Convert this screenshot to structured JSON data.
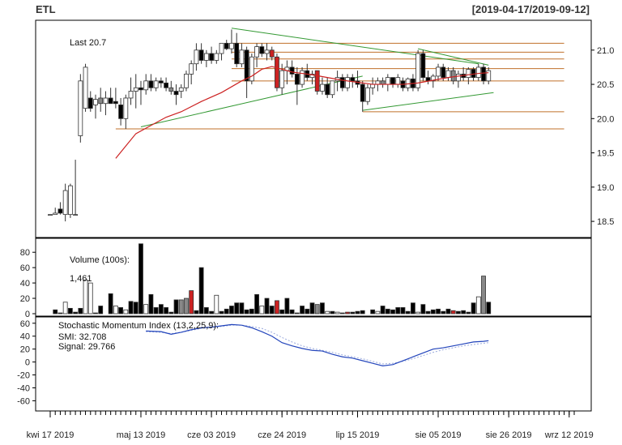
{
  "header": {
    "symbol": "ETL",
    "range": "[2019-04-17/2019-09-12]"
  },
  "chart_data": [
    {
      "type": "candlestick",
      "annotation": "Last 20.7",
      "ylim": [
        18.3,
        21.4
      ],
      "yticks": [
        18.5,
        19.0,
        19.5,
        20.0,
        20.5,
        21.0
      ],
      "x_range": [
        0,
        104
      ],
      "candles": [
        [
          0,
          18.6,
          18.6,
          18.6,
          18.6,
          0
        ],
        [
          1,
          18.6,
          18.7,
          18.6,
          18.62,
          0
        ],
        [
          2,
          18.68,
          18.78,
          18.6,
          18.62,
          0
        ],
        [
          3,
          18.6,
          19.05,
          18.5,
          18.95,
          0
        ],
        [
          4,
          18.6,
          19.05,
          18.55,
          19.02,
          0
        ],
        [
          5,
          18.6,
          19.4,
          18.6,
          18.6,
          0
        ],
        [
          6,
          19.75,
          20.65,
          19.65,
          20.55,
          0
        ],
        [
          7,
          20.15,
          20.8,
          20.1,
          20.75,
          0
        ],
        [
          8,
          20.3,
          20.4,
          20.1,
          20.15,
          0
        ],
        [
          9,
          20.2,
          20.35,
          20.0,
          20.28,
          0
        ],
        [
          10,
          20.3,
          20.45,
          20.1,
          20.22,
          0
        ],
        [
          11,
          20.22,
          20.4,
          20.05,
          20.3,
          0
        ],
        [
          12,
          20.3,
          20.45,
          20.25,
          20.22,
          0
        ],
        [
          13,
          20.25,
          20.45,
          20.15,
          20.22,
          0
        ],
        [
          14,
          20.2,
          20.3,
          19.9,
          20.0,
          0
        ],
        [
          15,
          20.0,
          20.35,
          19.85,
          20.3,
          0
        ],
        [
          16,
          20.3,
          20.6,
          20.2,
          20.4,
          0
        ],
        [
          17,
          20.4,
          20.65,
          20.15,
          20.45,
          0
        ],
        [
          18,
          20.45,
          20.55,
          20.2,
          20.42,
          0
        ],
        [
          19,
          20.42,
          20.65,
          20.35,
          20.55,
          0
        ],
        [
          20,
          20.55,
          20.65,
          20.4,
          20.45,
          0
        ],
        [
          21,
          20.45,
          20.6,
          20.4,
          20.55,
          0
        ],
        [
          22,
          20.55,
          20.6,
          20.45,
          20.52,
          0
        ],
        [
          23,
          20.52,
          20.6,
          20.4,
          20.45,
          0
        ],
        [
          24,
          20.45,
          20.55,
          20.35,
          20.4,
          0
        ],
        [
          25,
          20.4,
          20.5,
          20.2,
          20.35,
          0
        ],
        [
          26,
          20.4,
          20.5,
          20.3,
          20.45,
          0
        ],
        [
          27,
          20.45,
          20.7,
          20.4,
          20.65,
          0
        ],
        [
          28,
          20.65,
          20.85,
          20.5,
          20.8,
          0
        ],
        [
          29,
          20.8,
          21.1,
          20.7,
          21.0,
          0
        ],
        [
          30,
          21.0,
          21.1,
          20.8,
          20.85,
          0
        ],
        [
          31,
          20.85,
          21.0,
          20.75,
          20.95,
          0
        ],
        [
          32,
          20.95,
          21.05,
          20.8,
          20.85,
          0
        ],
        [
          33,
          20.85,
          21.0,
          20.8,
          20.95,
          0
        ],
        [
          34,
          20.95,
          21.1,
          20.85,
          21.1,
          0
        ],
        [
          35,
          21.1,
          21.15,
          21.0,
          21.02,
          0
        ],
        [
          36,
          21.02,
          21.3,
          20.95,
          21.1,
          0
        ],
        [
          37,
          21.1,
          21.25,
          20.75,
          20.8,
          0
        ],
        [
          38,
          20.8,
          21.1,
          20.75,
          21.0,
          0
        ],
        [
          39,
          21.0,
          21.05,
          20.3,
          20.55,
          0
        ],
        [
          40,
          20.55,
          20.95,
          20.5,
          20.9,
          0
        ],
        [
          41,
          20.9,
          21.1,
          20.75,
          21.05,
          0
        ],
        [
          42,
          21.05,
          21.1,
          20.9,
          20.95,
          0
        ],
        [
          43,
          20.95,
          21.1,
          20.85,
          21.0,
          0
        ],
        [
          44,
          21.0,
          21.05,
          20.85,
          20.9,
          1
        ],
        [
          45,
          20.9,
          20.95,
          20.4,
          20.45,
          1
        ],
        [
          46,
          20.45,
          20.8,
          20.35,
          20.7,
          0
        ],
        [
          47,
          20.7,
          20.85,
          20.5,
          20.75,
          0
        ],
        [
          48,
          20.75,
          20.85,
          20.6,
          20.65,
          0
        ],
        [
          49,
          20.65,
          20.75,
          20.2,
          20.5,
          0
        ],
        [
          50,
          20.5,
          20.75,
          20.45,
          20.7,
          0
        ],
        [
          51,
          20.7,
          20.8,
          20.55,
          20.6,
          0
        ],
        [
          52,
          20.6,
          20.7,
          20.5,
          20.65,
          0
        ],
        [
          53,
          20.7,
          20.7,
          20.35,
          20.4,
          1
        ],
        [
          54,
          20.4,
          20.6,
          20.35,
          20.5,
          0
        ],
        [
          55,
          20.5,
          20.6,
          20.3,
          20.35,
          0
        ],
        [
          56,
          20.35,
          20.55,
          20.3,
          20.55,
          0
        ],
        [
          57,
          20.55,
          20.7,
          20.4,
          20.6,
          0
        ],
        [
          58,
          20.6,
          20.65,
          20.4,
          20.45,
          0
        ],
        [
          59,
          20.45,
          20.65,
          20.4,
          20.6,
          0
        ],
        [
          60,
          20.6,
          20.65,
          20.45,
          20.55,
          0
        ],
        [
          61,
          20.55,
          20.7,
          20.45,
          20.5,
          0
        ],
        [
          62,
          20.5,
          20.55,
          20.1,
          20.25,
          0
        ],
        [
          63,
          20.25,
          20.5,
          20.2,
          20.45,
          0
        ],
        [
          64,
          20.45,
          20.6,
          20.35,
          20.5,
          0
        ],
        [
          65,
          20.5,
          20.6,
          20.4,
          20.55,
          0
        ],
        [
          66,
          20.55,
          20.6,
          20.45,
          20.5,
          0
        ],
        [
          67,
          20.5,
          20.65,
          20.4,
          20.6,
          0
        ],
        [
          68,
          20.6,
          20.6,
          20.45,
          20.5,
          0
        ],
        [
          69,
          20.5,
          20.65,
          20.45,
          20.6,
          0
        ],
        [
          70,
          20.55,
          20.6,
          20.4,
          20.45,
          0
        ],
        [
          71,
          20.45,
          20.6,
          20.4,
          20.58,
          0
        ],
        [
          72,
          20.58,
          20.65,
          20.4,
          20.45,
          0
        ],
        [
          73,
          20.45,
          21.0,
          20.4,
          20.95,
          0
        ],
        [
          74,
          20.95,
          21.0,
          20.55,
          20.6,
          0
        ],
        [
          75,
          20.6,
          20.7,
          20.5,
          20.55,
          0
        ],
        [
          76,
          20.55,
          20.65,
          20.45,
          20.62,
          0
        ],
        [
          77,
          20.62,
          20.8,
          20.55,
          20.75,
          0
        ],
        [
          78,
          20.75,
          20.8,
          20.55,
          20.6,
          0
        ],
        [
          79,
          20.6,
          20.75,
          20.55,
          20.7,
          0
        ],
        [
          80,
          20.7,
          20.75,
          20.5,
          20.55,
          0
        ],
        [
          81,
          20.55,
          20.7,
          20.45,
          20.65,
          0
        ],
        [
          82,
          20.65,
          20.75,
          20.55,
          20.6,
          0
        ],
        [
          83,
          20.6,
          20.75,
          20.5,
          20.72,
          0
        ],
        [
          84,
          20.72,
          20.75,
          20.55,
          20.6,
          0
        ],
        [
          85,
          20.6,
          20.8,
          20.55,
          20.75,
          0
        ],
        [
          86,
          20.75,
          20.8,
          20.5,
          20.55,
          0
        ],
        [
          87,
          20.55,
          20.75,
          20.5,
          20.7,
          0
        ]
      ],
      "moving_average": [
        [
          13,
          19.42
        ],
        [
          15,
          19.6
        ],
        [
          17,
          19.78
        ],
        [
          20,
          19.9
        ],
        [
          23,
          20.02
        ],
        [
          26,
          20.1
        ],
        [
          30,
          20.25
        ],
        [
          34,
          20.38
        ],
        [
          38,
          20.55
        ],
        [
          40,
          20.62
        ],
        [
          42,
          20.72
        ],
        [
          44,
          20.76
        ],
        [
          46,
          20.72
        ],
        [
          48,
          20.68
        ],
        [
          50,
          20.66
        ],
        [
          52,
          20.64
        ],
        [
          55,
          20.6
        ],
        [
          58,
          20.56
        ],
        [
          61,
          20.53
        ],
        [
          64,
          20.5
        ],
        [
          67,
          20.5
        ],
        [
          70,
          20.5
        ],
        [
          73,
          20.52
        ],
        [
          76,
          20.56
        ],
        [
          79,
          20.6
        ],
        [
          82,
          20.63
        ],
        [
          85,
          20.66
        ],
        [
          87,
          20.67
        ]
      ],
      "horizontal_lines": [
        21.1,
        20.97,
        20.87,
        20.73,
        20.55,
        20.1,
        19.85
      ],
      "trendlines": [
        [
          [
            18,
            19.88
          ],
          [
            62,
            20.62
          ]
        ],
        [
          [
            36,
            21.32
          ],
          [
            85,
            20.8
          ]
        ],
        [
          [
            73,
            21.02
          ],
          [
            87,
            20.78
          ]
        ],
        [
          [
            62,
            20.12
          ],
          [
            88,
            20.38
          ]
        ]
      ]
    },
    {
      "type": "bar",
      "label": "Volume (100s):",
      "value_label": "1,461",
      "ylim": [
        0,
        95
      ],
      "yticks": [
        0,
        20,
        40,
        60,
        80
      ],
      "values": [
        0,
        5,
        1,
        15,
        7,
        2,
        7,
        44,
        40,
        1,
        10,
        0,
        26,
        10,
        8,
        5,
        16,
        15,
        91,
        12,
        25,
        8,
        12,
        8,
        2,
        18,
        18,
        20,
        30,
        4,
        60,
        8,
        3,
        24,
        3,
        6,
        10,
        14,
        14,
        5,
        6,
        25,
        10,
        20,
        10,
        17,
        5,
        20,
        5,
        1,
        10,
        6,
        14,
        12,
        14,
        3,
        3,
        2,
        1,
        2,
        2,
        3,
        4,
        0,
        5,
        3,
        10,
        6,
        5,
        8,
        8,
        3,
        14,
        2,
        12,
        3,
        5,
        6,
        3,
        6,
        4,
        3,
        4,
        2,
        14,
        22,
        49,
        15
      ],
      "colors": [
        0,
        0,
        0,
        1,
        0,
        0,
        0,
        1,
        1,
        0,
        0,
        0,
        0,
        1,
        0,
        1,
        0,
        0,
        0,
        1,
        0,
        0,
        0,
        0,
        0,
        0,
        2,
        2,
        3,
        0,
        0,
        0,
        0,
        1,
        0,
        0,
        0,
        0,
        0,
        0,
        0,
        0,
        1,
        0,
        0,
        3,
        0,
        0,
        0,
        0,
        0,
        0,
        0,
        2,
        0,
        1,
        0,
        1,
        0,
        3,
        0,
        0,
        0,
        0,
        0,
        1,
        0,
        0,
        0,
        0,
        0,
        0,
        0,
        1,
        0,
        0,
        0,
        0,
        0,
        0,
        3,
        0,
        0,
        0,
        0,
        1,
        2,
        0
      ]
    },
    {
      "type": "line",
      "label": "Stochastic Momentum Index (13,2,25,9):",
      "smi_label": "SMI: 32.708",
      "signal_label": "Signal: 29.766",
      "ylim": [
        -72,
        66
      ],
      "yticks": [
        -60,
        -40,
        -20,
        0,
        20,
        40,
        60
      ],
      "smi": [
        [
          19,
          48
        ],
        [
          22,
          47
        ],
        [
          24,
          43
        ],
        [
          26,
          46
        ],
        [
          28,
          50
        ],
        [
          30,
          53
        ],
        [
          32,
          54
        ],
        [
          34,
          56
        ],
        [
          36,
          58
        ],
        [
          38,
          57
        ],
        [
          40,
          53
        ],
        [
          42,
          47
        ],
        [
          44,
          40
        ],
        [
          46,
          30
        ],
        [
          48,
          25
        ],
        [
          50,
          21
        ],
        [
          52,
          18
        ],
        [
          54,
          17
        ],
        [
          56,
          12
        ],
        [
          58,
          8
        ],
        [
          60,
          6
        ],
        [
          62,
          2
        ],
        [
          64,
          -2
        ],
        [
          66,
          -6
        ],
        [
          68,
          -4
        ],
        [
          70,
          2
        ],
        [
          72,
          8
        ],
        [
          74,
          14
        ],
        [
          76,
          20
        ],
        [
          78,
          22
        ],
        [
          80,
          25
        ],
        [
          82,
          28
        ],
        [
          84,
          31
        ],
        [
          86,
          32
        ],
        [
          87,
          33
        ]
      ],
      "signal": [
        [
          19,
          47
        ],
        [
          22,
          46
        ],
        [
          24,
          44
        ],
        [
          26,
          46
        ],
        [
          28,
          49
        ],
        [
          30,
          52
        ],
        [
          32,
          53
        ],
        [
          34,
          55
        ],
        [
          36,
          57
        ],
        [
          38,
          57
        ],
        [
          40,
          55
        ],
        [
          42,
          52
        ],
        [
          44,
          46
        ],
        [
          46,
          38
        ],
        [
          48,
          31
        ],
        [
          50,
          25
        ],
        [
          52,
          21
        ],
        [
          54,
          18
        ],
        [
          56,
          15
        ],
        [
          58,
          11
        ],
        [
          60,
          8
        ],
        [
          62,
          5
        ],
        [
          64,
          1
        ],
        [
          66,
          -3
        ],
        [
          68,
          -2
        ],
        [
          70,
          1
        ],
        [
          72,
          5
        ],
        [
          74,
          10
        ],
        [
          76,
          15
        ],
        [
          78,
          19
        ],
        [
          80,
          22
        ],
        [
          82,
          25
        ],
        [
          84,
          27
        ],
        [
          86,
          29
        ],
        [
          87,
          30
        ]
      ]
    }
  ],
  "x_axis": {
    "labels": [
      {
        "i": 0,
        "text": "kwi 17 2019"
      },
      {
        "i": 18,
        "text": "maj 13 2019"
      },
      {
        "i": 32,
        "text": "cze 03 2019"
      },
      {
        "i": 46,
        "text": "cze 24 2019"
      },
      {
        "i": 61,
        "text": "lip 15 2019"
      },
      {
        "i": 77,
        "text": "sie 05 2019"
      },
      {
        "i": 91,
        "text": "sie 26 2019"
      },
      {
        "i": 103,
        "text": "wrz 12 2019"
      }
    ]
  },
  "colors": {
    "up": "#ffffff",
    "down": "#000000",
    "red": "#cc2222",
    "gray": "#888888",
    "ma": "#cc2222",
    "hline": "#c0702a",
    "trend": "#339933",
    "smi": "#2244bb",
    "signal": "#9aaadd",
    "frame": "#000000"
  }
}
